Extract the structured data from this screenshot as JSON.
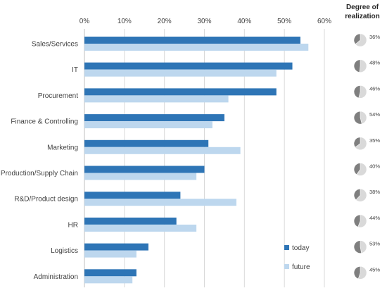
{
  "chart_data": {
    "type": "bar",
    "orientation": "horizontal",
    "categories": [
      "Sales/Services",
      "IT",
      "Procurement",
      "Finance & Controlling",
      "Marketing",
      "Production/Supply Chain",
      "R&D/Product design",
      "HR",
      "Logistics",
      "Administration"
    ],
    "series": [
      {
        "name": "today",
        "color": "#2e75b6",
        "values": [
          54,
          52,
          48,
          35,
          31,
          30,
          24,
          23,
          16,
          13
        ]
      },
      {
        "name": "future",
        "color": "#bdd7ee",
        "values": [
          56,
          48,
          36,
          32,
          39,
          28,
          38,
          28,
          13,
          12
        ]
      }
    ],
    "xlim": [
      0,
      60
    ],
    "x_ticks": [
      "0%",
      "10%",
      "20%",
      "30%",
      "40%",
      "50%",
      "60%"
    ],
    "grid": "vertical",
    "legend_position": "bottom-right",
    "side_panel": {
      "title_lines": [
        "Degree of",
        "realization"
      ],
      "pie_colors": {
        "realized": "#7f7f7f",
        "remaining": "#d9d9d9"
      },
      "values": [
        36,
        48,
        46,
        54,
        35,
        40,
        38,
        44,
        53,
        45
      ],
      "labels": [
        "36%",
        "48%",
        "46%",
        "54%",
        "35%",
        "40%",
        "38%",
        "44%",
        "53%",
        "45%"
      ]
    }
  }
}
